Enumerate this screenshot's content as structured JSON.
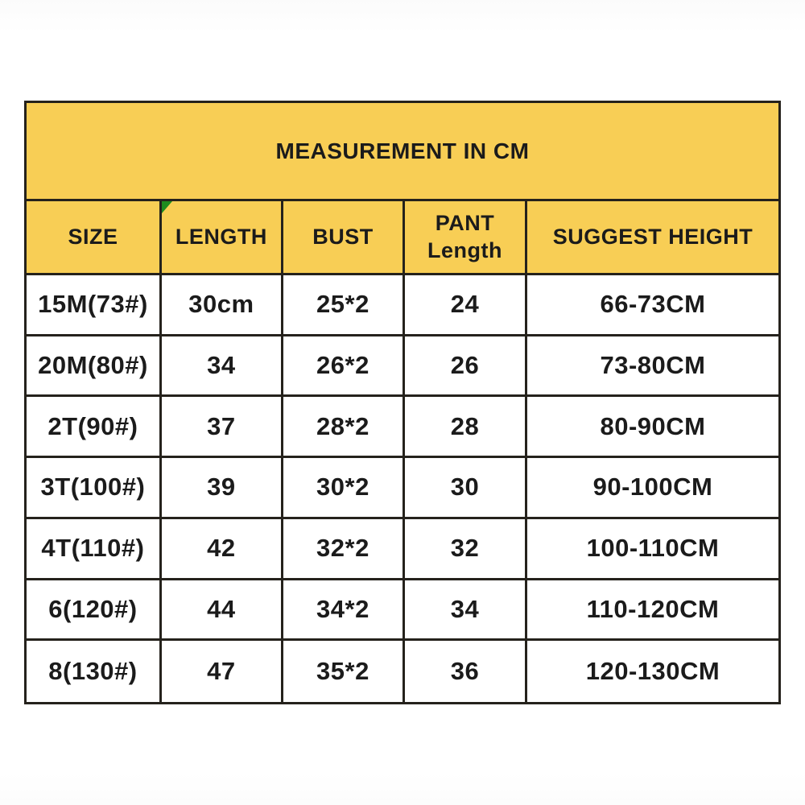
{
  "table": {
    "title": "MEASUREMENT IN CM",
    "header": {
      "size": "SIZE",
      "length": "LENGTH",
      "bust": "BUST",
      "pant_line1": "PANT",
      "pant_line2": "Length",
      "suggest": "SUGGEST HEIGHT"
    },
    "colors": {
      "header_bg": "#f8ce55",
      "border": "#25221c",
      "text": "#1b1b1b",
      "corner_marker_green": "#1e8c1e",
      "row_bg": "#ffffff"
    }
  },
  "chart_data": {
    "type": "table",
    "title": "MEASUREMENT IN CM",
    "columns": [
      "SIZE",
      "LENGTH",
      "BUST",
      "PANT Length",
      "SUGGEST HEIGHT"
    ],
    "rows": [
      [
        "15M(73#)",
        "30cm",
        "25*2",
        "24",
        "66-73CM"
      ],
      [
        "20M(80#)",
        "34",
        "26*2",
        "26",
        "73-80CM"
      ],
      [
        "2T(90#)",
        "37",
        "28*2",
        "28",
        "80-90CM"
      ],
      [
        "3T(100#)",
        "39",
        "30*2",
        "30",
        "90-100CM"
      ],
      [
        "4T(110#)",
        "42",
        "32*2",
        "32",
        "100-110CM"
      ],
      [
        "6(120#)",
        "44",
        "34*2",
        "34",
        "110-120CM"
      ],
      [
        "8(130#)",
        "47",
        "35*2",
        "36",
        "120-130CM"
      ]
    ]
  }
}
